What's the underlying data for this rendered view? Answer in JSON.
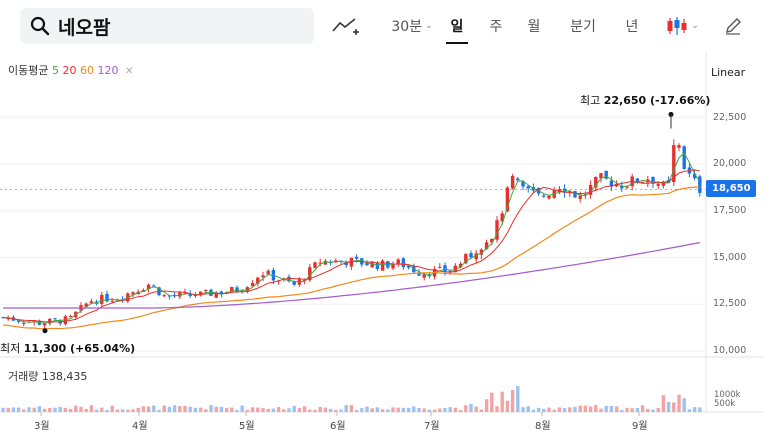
{
  "search": {
    "value": "네오팜"
  },
  "toolbar": {
    "timeframes": [
      "30분",
      "일",
      "주",
      "월",
      "분기",
      "년"
    ],
    "selected": "일"
  },
  "chart": {
    "ma_legend_title": "이동평균",
    "ma_periods": [
      {
        "label": "5",
        "color": "#3fa83f"
      },
      {
        "label": "20",
        "color": "#e5302f"
      },
      {
        "label": "60",
        "color": "#f08a1c"
      },
      {
        "label": "120",
        "color": "#a25bd0"
      }
    ],
    "scale_mode": "Linear",
    "price_ticks": [
      "22,500",
      "20,000",
      "17,500",
      "15,000",
      "12,500",
      "10,000"
    ],
    "current_price": "18,650",
    "max_label": "최고",
    "max_value": "22,650 (-17.66%)",
    "min_label": "최저",
    "min_value": "11,300 (+65.04%)",
    "volume_title": "거래량",
    "volume_value": "138,435",
    "volume_ticks": [
      "1000k",
      "500k"
    ],
    "months": [
      "3월",
      "4월",
      "5월",
      "6월",
      "7월",
      "8월",
      "9월"
    ],
    "up_color": "#e5302f",
    "down_color": "#1a73e8"
  }
}
